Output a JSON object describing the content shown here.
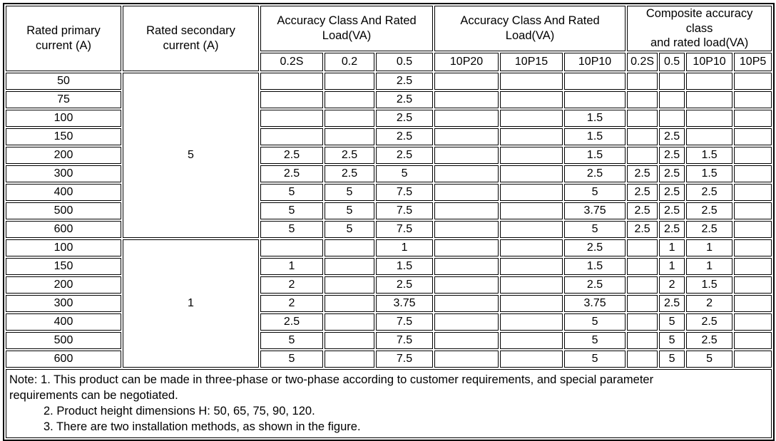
{
  "table": {
    "header": {
      "primary": "Rated primary\ncurrent (A)",
      "secondary": "Rated secondary\ncurrent (A)",
      "accuracy_group_1": "Accuracy Class And Rated\nLoad(VA)",
      "accuracy_group_2": "Accuracy Class And Rated\nLoad(VA)",
      "composite_group": "Composite accuracy\nclass\nand rated load(VA)",
      "subcolumns": [
        "0.2S",
        "0.2",
        "0.5",
        "10P20",
        "10P15",
        "10P10",
        "0.2S",
        "0.5",
        "10P10",
        "10P5"
      ]
    },
    "sections": [
      {
        "secondary_current": "5",
        "rows": [
          {
            "primary": "50",
            "cells": [
              "",
              "",
              "2.5",
              "",
              "",
              "",
              "",
              "",
              "",
              ""
            ]
          },
          {
            "primary": "75",
            "cells": [
              "",
              "",
              "2.5",
              "",
              "",
              "",
              "",
              "",
              "",
              ""
            ]
          },
          {
            "primary": "100",
            "cells": [
              "",
              "",
              "2.5",
              "",
              "",
              "1.5",
              "",
              "",
              "",
              ""
            ]
          },
          {
            "primary": "150",
            "cells": [
              "",
              "",
              "2.5",
              "",
              "",
              "1.5",
              "",
              "2.5",
              "",
              ""
            ]
          },
          {
            "primary": "200",
            "cells": [
              "2.5",
              "2.5",
              "2.5",
              "",
              "",
              "1.5",
              "",
              "2.5",
              "1.5",
              ""
            ]
          },
          {
            "primary": "300",
            "cells": [
              "2.5",
              "2.5",
              "5",
              "",
              "",
              "2.5",
              "2.5",
              "2.5",
              "1.5",
              ""
            ]
          },
          {
            "primary": "400",
            "cells": [
              "5",
              "5",
              "7.5",
              "",
              "",
              "5",
              "2.5",
              "2.5",
              "2.5",
              ""
            ]
          },
          {
            "primary": "500",
            "cells": [
              "5",
              "5",
              "7.5",
              "",
              "",
              "3.75",
              "2.5",
              "2.5",
              "2.5",
              ""
            ]
          },
          {
            "primary": "600",
            "cells": [
              "5",
              "5",
              "7.5",
              "",
              "",
              "5",
              "2.5",
              "2.5",
              "2.5",
              ""
            ]
          }
        ]
      },
      {
        "secondary_current": "1",
        "rows": [
          {
            "primary": "100",
            "cells": [
              "",
              "",
              "1",
              "",
              "",
              "2.5",
              "",
              "1",
              "1",
              ""
            ]
          },
          {
            "primary": "150",
            "cells": [
              "1",
              "",
              "1.5",
              "",
              "",
              "1.5",
              "",
              "1",
              "1",
              ""
            ]
          },
          {
            "primary": "200",
            "cells": [
              "2",
              "",
              "2.5",
              "",
              "",
              "2.5",
              "",
              "2",
              "1.5",
              ""
            ]
          },
          {
            "primary": "300",
            "cells": [
              "2",
              "",
              "3.75",
              "",
              "",
              "3.75",
              "",
              "2.5",
              "2",
              ""
            ]
          },
          {
            "primary": "400",
            "cells": [
              "2.5",
              "",
              "7.5",
              "",
              "",
              "5",
              "",
              "5",
              "2.5",
              ""
            ]
          },
          {
            "primary": "500",
            "cells": [
              "5",
              "",
              "7.5",
              "",
              "",
              "5",
              "",
              "5",
              "2.5",
              ""
            ]
          },
          {
            "primary": "600",
            "cells": [
              "5",
              "",
              "7.5",
              "",
              "",
              "5",
              "",
              "5",
              "5",
              ""
            ]
          }
        ]
      }
    ],
    "note": {
      "line1": "Note: 1. This product can be made in three-phase or two-phase according to customer requirements, and special parameter\nrequirements can be negotiated.",
      "line2": "2. Product height dimensions H: 50, 65, 75, 90, 120.",
      "line3": "3. There are two installation methods, as shown in the figure."
    }
  }
}
